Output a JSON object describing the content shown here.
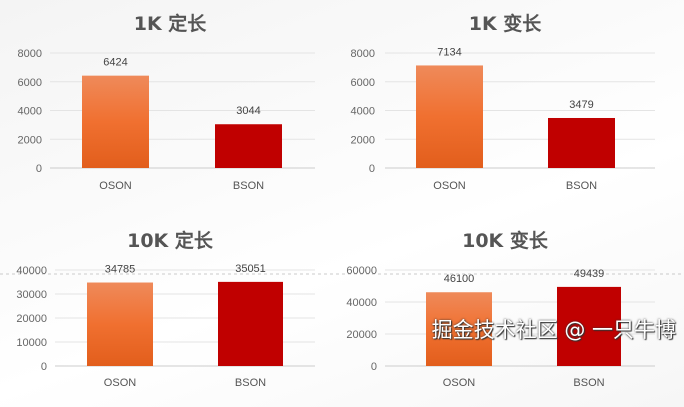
{
  "chart_data": [
    {
      "type": "bar",
      "title": "1K  定长",
      "categories": [
        "OSON",
        "BSON"
      ],
      "values": [
        6424,
        3044
      ],
      "ylim": [
        0,
        8000
      ],
      "yticks": [
        0,
        2000,
        4000,
        6000,
        8000
      ],
      "grid": true,
      "colors": [
        "#ee6a2a",
        "#c00000"
      ]
    },
    {
      "type": "bar",
      "title": "1K  变长",
      "categories": [
        "OSON",
        "BSON"
      ],
      "values": [
        7134,
        3479
      ],
      "ylim": [
        0,
        8000
      ],
      "yticks": [
        0,
        2000,
        4000,
        6000,
        8000
      ],
      "grid": true,
      "colors": [
        "#ee6a2a",
        "#c00000"
      ]
    },
    {
      "type": "bar",
      "title": "10K  定长",
      "categories": [
        "OSON",
        "BSON"
      ],
      "values": [
        34785,
        35051
      ],
      "ylim": [
        0,
        40000
      ],
      "yticks": [
        0,
        10000,
        20000,
        30000,
        40000
      ],
      "grid": true,
      "colors": [
        "#ee6a2a",
        "#c00000"
      ]
    },
    {
      "type": "bar",
      "title": "10K  变长",
      "categories": [
        "OSON",
        "BSON"
      ],
      "values": [
        46100,
        49439
      ],
      "ylim": [
        0,
        60000
      ],
      "yticks": [
        0,
        20000,
        40000,
        60000
      ],
      "grid": true,
      "colors": [
        "#ee6a2a",
        "#c00000"
      ]
    }
  ],
  "watermark": "掘金技术社区 @ 一只牛博"
}
